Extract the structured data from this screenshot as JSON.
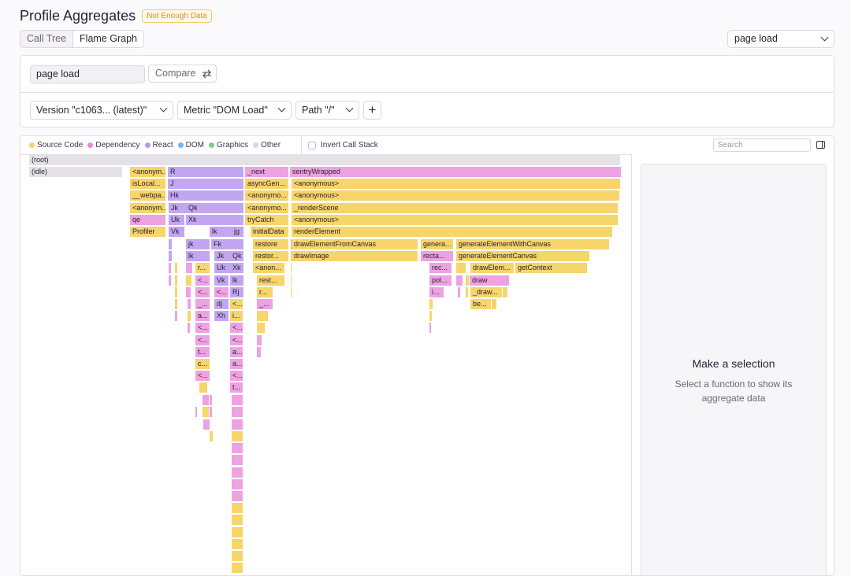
{
  "header": {
    "title": "Profile Aggregates",
    "badge": "Not Enough Data"
  },
  "view_tabs": [
    {
      "label": "Call Tree"
    },
    {
      "label": "Flame Graph"
    }
  ],
  "top_select": {
    "value": "page load"
  },
  "query": {
    "transaction_value": "page load",
    "compare_label": "Compare"
  },
  "filters": {
    "version": "Version \"c1063...  (latest)\"",
    "metric": "Metric \"DOM Load\"",
    "path": "Path \"/\"",
    "add_label": "+"
  },
  "legend": [
    {
      "label": "Source Code",
      "color": "#f6d56a"
    },
    {
      "label": "Dependency",
      "color": "#e88ad8"
    },
    {
      "label": "React",
      "color": "#b99af0"
    },
    {
      "label": "DOM",
      "color": "#6fb6f2"
    },
    {
      "label": "Graphics",
      "color": "#7ccf88"
    },
    {
      "label": "Other",
      "color": "#d9d6dd"
    }
  ],
  "invert_label": "Invert Call Stack",
  "search": {
    "placeholder": "Search"
  },
  "side": {
    "title": "Make a selection",
    "subtitle": "Select a function to show its aggregate data"
  },
  "colors": {
    "source": "#f6d56a",
    "dependency": "#eda2e2",
    "react": "#c3a6f2",
    "other": "#e4e2e7"
  },
  "frames": [
    {
      "label": "(root)",
      "kind": "other"
    },
    {
      "label": "(idle)",
      "kind": "other"
    },
    {
      "label": "<anonym...",
      "kind": "source"
    },
    {
      "label": "R",
      "kind": "react"
    },
    {
      "label": "_next",
      "kind": "dependency"
    },
    {
      "label": "sentryWrapped",
      "kind": "dependency"
    },
    {
      "label": "isLocal...",
      "kind": "source"
    },
    {
      "label": "J",
      "kind": "react"
    },
    {
      "label": "asyncGen...",
      "kind": "source"
    },
    {
      "label": "<anonymous>",
      "kind": "source"
    },
    {
      "label": "__webpa...",
      "kind": "source"
    },
    {
      "label": "Hk",
      "kind": "react"
    },
    {
      "label": "<anonymo...",
      "kind": "source"
    },
    {
      "label": "<anonymous>",
      "kind": "source"
    },
    {
      "label": "<anonym...",
      "kind": "source"
    },
    {
      "label": "Jk",
      "kind": "react"
    },
    {
      "label": "Qk",
      "kind": "react"
    },
    {
      "label": "<anonymo...",
      "kind": "source"
    },
    {
      "label": "_renderScene",
      "kind": "source"
    },
    {
      "label": "qe",
      "kind": "dependency"
    },
    {
      "label": "Uk",
      "kind": "react"
    },
    {
      "label": "Xk",
      "kind": "react"
    },
    {
      "label": "tryCatch",
      "kind": "source"
    },
    {
      "label": "<anonymous>",
      "kind": "source"
    },
    {
      "label": "Profiler",
      "kind": "source"
    },
    {
      "label": "Vk",
      "kind": "react"
    },
    {
      "label": "lk",
      "kind": "react"
    },
    {
      "label": "jg",
      "kind": "react"
    },
    {
      "label": "initialData",
      "kind": "source"
    },
    {
      "label": "renderElement",
      "kind": "source"
    },
    {
      "label": "jk",
      "kind": "react"
    },
    {
      "label": "Fk",
      "kind": "react"
    },
    {
      "label": "restore",
      "kind": "source"
    },
    {
      "label": "drawElementFromCanvas",
      "kind": "source"
    },
    {
      "label": "genera...",
      "kind": "source"
    },
    {
      "label": "generateElementWithCanvas",
      "kind": "source"
    },
    {
      "label": "lk",
      "kind": "react"
    },
    {
      "label": "Jk",
      "kind": "react"
    },
    {
      "label": "Qk",
      "kind": "react"
    },
    {
      "label": "restor...",
      "kind": "source"
    },
    {
      "label": "drawImage",
      "kind": "source"
    },
    {
      "label": "recta...",
      "kind": "dependency"
    },
    {
      "label": "generateElementCanvas",
      "kind": "source"
    },
    {
      "label": "r...",
      "kind": "source"
    },
    {
      "label": "Uk",
      "kind": "react"
    },
    {
      "label": "Xk",
      "kind": "react"
    },
    {
      "label": "<anon...",
      "kind": "source"
    },
    {
      "label": "rec...",
      "kind": "dependency"
    },
    {
      "label": "drawElem...",
      "kind": "source"
    },
    {
      "label": "getContext",
      "kind": "source"
    },
    {
      "label": "<...",
      "kind": "dependency"
    },
    {
      "label": "Vk",
      "kind": "react"
    },
    {
      "label": "lk",
      "kind": "react"
    },
    {
      "label": "rest...",
      "kind": "source"
    },
    {
      "label": "pol...",
      "kind": "dependency"
    },
    {
      "label": "draw",
      "kind": "dependency"
    },
    {
      "label": "<...",
      "kind": "dependency"
    },
    {
      "label": "<...",
      "kind": "dependency"
    },
    {
      "label": "Rj",
      "kind": "react"
    },
    {
      "label": "r...",
      "kind": "source"
    },
    {
      "label": "i...",
      "kind": "dependency"
    },
    {
      "label": "_draw...",
      "kind": "source"
    },
    {
      "label": "_...",
      "kind": "dependency"
    },
    {
      "label": "dj",
      "kind": "react"
    },
    {
      "label": "<...",
      "kind": "source"
    },
    {
      "label": "_...",
      "kind": "dependency"
    },
    {
      "label": "be...",
      "kind": "source"
    },
    {
      "label": "a...",
      "kind": "dependency"
    },
    {
      "label": "Xh",
      "kind": "react"
    },
    {
      "label": "i...",
      "kind": "source"
    },
    {
      "label": "<...",
      "kind": "dependency"
    },
    {
      "label": "<...",
      "kind": "dependency"
    },
    {
      "label": "<...",
      "kind": "dependency"
    },
    {
      "label": "<...",
      "kind": "dependency"
    },
    {
      "label": "t...",
      "kind": "dependency"
    },
    {
      "label": "a...",
      "kind": "dependency"
    },
    {
      "label": "c...",
      "kind": "source"
    },
    {
      "label": "a...",
      "kind": "dependency"
    },
    {
      "label": "<...",
      "kind": "dependency"
    },
    {
      "label": "<...",
      "kind": "dependency"
    },
    {
      "label": "t...",
      "kind": "dependency"
    }
  ]
}
